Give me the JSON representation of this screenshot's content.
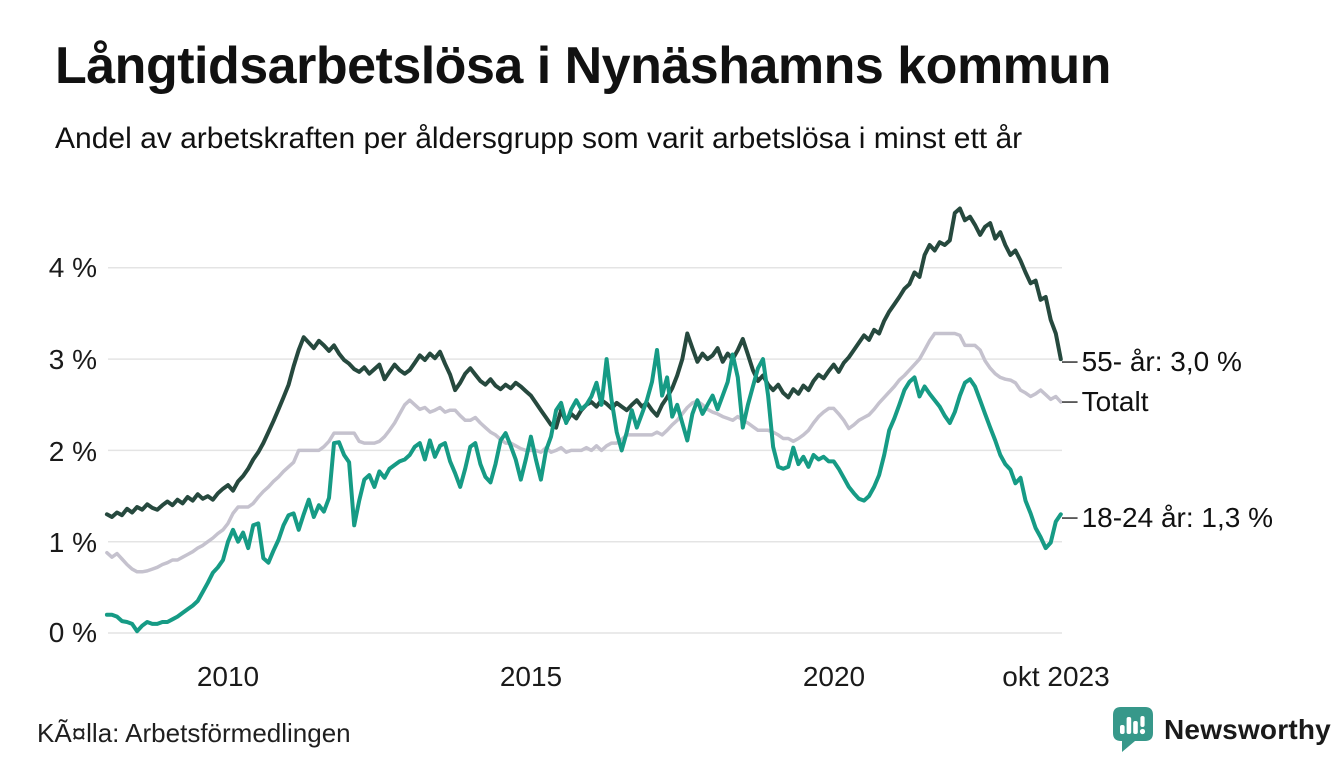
{
  "title": "Långtidsarbetslösa i Nynäshamns kommun",
  "subtitle": "Andel av arbetskraften per åldersgrupp som varit arbetslösa i minst ett år",
  "source": "KÃ¤lla: Arbetsförmedlingen",
  "logo": {
    "text": "Newsworthy",
    "color": "#37988A"
  },
  "colors": {
    "grid": "#e4e4e4",
    "text": "#1a1a1a",
    "tick_dash": "#595959"
  },
  "chart_data": {
    "type": "line",
    "title": "Långtidsarbetslösa i Nynäshamns kommun",
    "subtitle": "Andel av arbetskraften per åldersgrupp som varit arbetslösa i minst ett år",
    "unit": "% av arbetskraften",
    "x_start_year": 2008.0,
    "x_step_months": 1,
    "x_end_label_period": "okt 2023",
    "x_tick_labels": [
      "2010",
      "2015",
      "2020",
      "okt 2023"
    ],
    "x_tick_years": [
      2010,
      2015,
      2020,
      2023.75
    ],
    "y_ticks": [
      "4 %",
      "3 %",
      "2 %",
      "1 %",
      "0 %"
    ],
    "y_tick_values": [
      4,
      3,
      2,
      1,
      0
    ],
    "ylim": [
      0,
      4.8
    ],
    "grid": "horizontal",
    "legend_position": "right-end-labels",
    "series": [
      {
        "name": "55- år",
        "end_label": "55- år: 3,0 %",
        "last_value": 3.0,
        "color": "#26493E",
        "values": [
          1.3,
          1.27,
          1.32,
          1.29,
          1.36,
          1.32,
          1.38,
          1.35,
          1.41,
          1.37,
          1.35,
          1.4,
          1.44,
          1.4,
          1.46,
          1.42,
          1.49,
          1.45,
          1.52,
          1.47,
          1.5,
          1.46,
          1.53,
          1.58,
          1.62,
          1.56,
          1.66,
          1.72,
          1.8,
          1.9,
          1.98,
          2.08,
          2.2,
          2.32,
          2.45,
          2.58,
          2.72,
          2.92,
          3.1,
          3.24,
          3.18,
          3.12,
          3.2,
          3.15,
          3.09,
          3.15,
          3.06,
          2.99,
          2.95,
          2.89,
          2.86,
          2.91,
          2.84,
          2.89,
          2.94,
          2.78,
          2.86,
          2.94,
          2.88,
          2.84,
          2.88,
          2.96,
          3.04,
          2.99,
          3.06,
          3.01,
          3.08,
          2.95,
          2.83,
          2.66,
          2.74,
          2.84,
          2.9,
          2.83,
          2.76,
          2.72,
          2.78,
          2.71,
          2.67,
          2.72,
          2.68,
          2.74,
          2.7,
          2.65,
          2.6,
          2.52,
          2.44,
          2.36,
          2.28,
          2.25,
          2.44,
          2.31,
          2.4,
          2.35,
          2.44,
          2.5,
          2.53,
          2.48,
          2.55,
          2.51,
          2.46,
          2.52,
          2.48,
          2.44,
          2.5,
          2.55,
          2.48,
          2.52,
          2.44,
          2.38,
          2.5,
          2.58,
          2.68,
          2.82,
          3.0,
          3.28,
          3.12,
          2.97,
          3.06,
          3.0,
          3.04,
          3.12,
          2.97,
          3.06,
          3.0,
          3.1,
          3.22,
          3.05,
          2.88,
          2.76,
          2.82,
          2.72,
          2.66,
          2.72,
          2.63,
          2.58,
          2.67,
          2.62,
          2.71,
          2.66,
          2.76,
          2.83,
          2.79,
          2.87,
          2.94,
          2.86,
          2.96,
          3.02,
          3.1,
          3.18,
          3.26,
          3.21,
          3.32,
          3.28,
          3.42,
          3.52,
          3.6,
          3.68,
          3.77,
          3.82,
          3.95,
          3.9,
          4.14,
          4.25,
          4.19,
          4.28,
          4.25,
          4.3,
          4.6,
          4.65,
          4.52,
          4.56,
          4.47,
          4.36,
          4.45,
          4.49,
          4.32,
          4.39,
          4.25,
          4.14,
          4.19,
          4.08,
          3.95,
          3.83,
          3.86,
          3.65,
          3.68,
          3.43,
          3.28,
          3.0
        ]
      },
      {
        "name": "Totalt",
        "end_label": "Totalt",
        "last_value": 2.5,
        "color": "#C5C2CE",
        "values": [
          0.88,
          0.83,
          0.87,
          0.81,
          0.75,
          0.7,
          0.67,
          0.67,
          0.68,
          0.7,
          0.72,
          0.75,
          0.77,
          0.8,
          0.8,
          0.83,
          0.86,
          0.89,
          0.93,
          0.96,
          1.0,
          1.04,
          1.09,
          1.13,
          1.2,
          1.31,
          1.38,
          1.38,
          1.38,
          1.42,
          1.49,
          1.55,
          1.6,
          1.66,
          1.71,
          1.77,
          1.82,
          1.87,
          2.0,
          2.0,
          2.0,
          2.0,
          2.0,
          2.04,
          2.1,
          2.19,
          2.19,
          2.19,
          2.19,
          2.19,
          2.1,
          2.08,
          2.08,
          2.08,
          2.1,
          2.15,
          2.22,
          2.3,
          2.4,
          2.5,
          2.55,
          2.5,
          2.45,
          2.47,
          2.42,
          2.44,
          2.47,
          2.42,
          2.44,
          2.44,
          2.38,
          2.33,
          2.33,
          2.36,
          2.3,
          2.25,
          2.2,
          2.17,
          2.12,
          2.08,
          2.08,
          2.05,
          2.02,
          2.0,
          2.0,
          2.0,
          1.98,
          2.03,
          1.98,
          2.0,
          2.03,
          1.98,
          2.0,
          2.0,
          2.0,
          2.03,
          2.0,
          2.05,
          2.0,
          2.05,
          2.08,
          2.08,
          2.12,
          2.17,
          2.17,
          2.17,
          2.17,
          2.17,
          2.17,
          2.2,
          2.17,
          2.22,
          2.28,
          2.33,
          2.4,
          2.47,
          2.52,
          2.54,
          2.5,
          2.45,
          2.42,
          2.4,
          2.37,
          2.35,
          2.33,
          2.37,
          2.33,
          2.3,
          2.26,
          2.22,
          2.22,
          2.22,
          2.2,
          2.17,
          2.13,
          2.13,
          2.1,
          2.13,
          2.17,
          2.22,
          2.3,
          2.37,
          2.42,
          2.46,
          2.46,
          2.4,
          2.33,
          2.24,
          2.28,
          2.33,
          2.36,
          2.39,
          2.45,
          2.52,
          2.58,
          2.64,
          2.7,
          2.77,
          2.82,
          2.88,
          2.94,
          3.0,
          3.1,
          3.2,
          3.28,
          3.28,
          3.28,
          3.28,
          3.28,
          3.26,
          3.15,
          3.15,
          3.15,
          3.1,
          2.98,
          2.9,
          2.84,
          2.8,
          2.78,
          2.77,
          2.74,
          2.66,
          2.63,
          2.59,
          2.62,
          2.66,
          2.61,
          2.56,
          2.59,
          2.53
        ]
      },
      {
        "name": "18-24 år",
        "end_label": "18-24 år: 1,3 %",
        "last_value": 1.3,
        "color": "#169B85",
        "values": [
          0.2,
          0.2,
          0.18,
          0.13,
          0.12,
          0.1,
          0.02,
          0.08,
          0.12,
          0.1,
          0.1,
          0.12,
          0.12,
          0.15,
          0.18,
          0.22,
          0.26,
          0.3,
          0.35,
          0.45,
          0.55,
          0.66,
          0.72,
          0.8,
          1.0,
          1.13,
          1.0,
          1.1,
          0.93,
          1.18,
          1.2,
          0.82,
          0.77,
          0.9,
          1.02,
          1.18,
          1.29,
          1.31,
          1.13,
          1.3,
          1.46,
          1.27,
          1.4,
          1.33,
          1.48,
          2.08,
          2.09,
          1.95,
          1.87,
          1.18,
          1.45,
          1.68,
          1.73,
          1.6,
          1.77,
          1.7,
          1.8,
          1.84,
          1.88,
          1.9,
          1.95,
          2.04,
          2.08,
          1.9,
          2.11,
          1.93,
          2.05,
          2.08,
          1.88,
          1.75,
          1.6,
          1.8,
          2.04,
          2.08,
          1.85,
          1.71,
          1.65,
          1.85,
          2.11,
          2.19,
          2.05,
          1.9,
          1.68,
          1.9,
          2.15,
          1.9,
          1.68,
          2.0,
          2.15,
          2.44,
          2.52,
          2.3,
          2.45,
          2.55,
          2.45,
          2.5,
          2.59,
          2.74,
          2.5,
          3.0,
          2.55,
          2.2,
          2.0,
          2.2,
          2.44,
          2.25,
          2.4,
          2.55,
          2.75,
          3.1,
          2.6,
          2.8,
          2.37,
          2.5,
          2.3,
          2.11,
          2.4,
          2.55,
          2.4,
          2.5,
          2.6,
          2.45,
          2.6,
          2.75,
          3.05,
          2.8,
          2.25,
          2.5,
          2.7,
          2.9,
          3.0,
          2.6,
          2.04,
          1.82,
          1.8,
          1.82,
          2.03,
          1.85,
          1.93,
          1.82,
          1.95,
          1.9,
          1.93,
          1.88,
          1.88,
          1.8,
          1.7,
          1.6,
          1.53,
          1.47,
          1.45,
          1.5,
          1.6,
          1.73,
          1.95,
          2.22,
          2.35,
          2.5,
          2.66,
          2.75,
          2.8,
          2.59,
          2.7,
          2.62,
          2.55,
          2.48,
          2.38,
          2.3,
          2.42,
          2.6,
          2.74,
          2.78,
          2.7,
          2.55,
          2.4,
          2.25,
          2.11,
          1.95,
          1.85,
          1.79,
          1.64,
          1.7,
          1.45,
          1.31,
          1.15,
          1.05,
          0.93,
          0.99,
          1.22,
          1.3
        ]
      }
    ]
  }
}
